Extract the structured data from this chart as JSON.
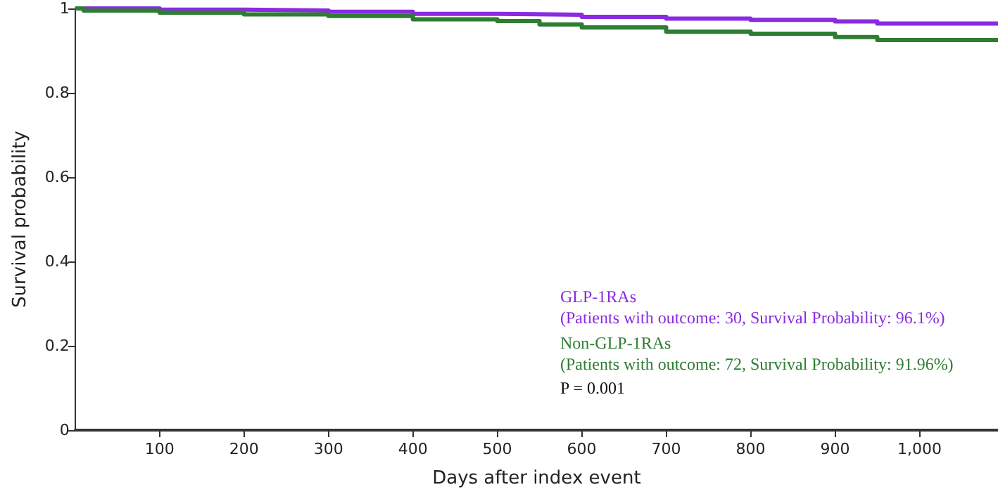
{
  "chart_data": {
    "type": "step",
    "xlabel": "Days after index event",
    "ylabel": "Survival probability",
    "xlim": [
      0,
      1093
    ],
    "ylim": [
      0,
      1
    ],
    "xticks": [
      100,
      200,
      300,
      400,
      500,
      600,
      700,
      800,
      900,
      {
        "value": 1000,
        "label": "1,000"
      }
    ],
    "yticks": [
      0,
      0.2,
      0.4,
      0.6,
      0.8,
      1
    ],
    "legend": "right",
    "grid": false,
    "marker": "none",
    "series": [
      {
        "name": "GLP-1RAs",
        "color": "#8a2be2",
        "x": [
          0,
          100,
          200,
          300,
          400,
          500,
          600,
          700,
          800,
          900,
          950,
          1093
        ],
        "values": [
          1,
          0.997,
          0.995,
          0.992,
          0.987,
          0.985,
          0.98,
          0.976,
          0.973,
          0.969,
          0.964,
          0.961
        ]
      },
      {
        "name": "Non-GLP-1RAs",
        "color": "#2e7d32",
        "x": [
          0,
          10,
          100,
          200,
          300,
          400,
          500,
          550,
          600,
          700,
          800,
          900,
          950,
          1093
        ],
        "values": [
          1,
          0.995,
          0.99,
          0.986,
          0.982,
          0.974,
          0.97,
          0.962,
          0.955,
          0.945,
          0.94,
          0.932,
          0.925,
          0.92
        ]
      }
    ],
    "annotations": [
      "(Patients with outcome: 30, Survival Probability: 96.1%)",
      "(Patients with outcome: 72, Survival Probability: 91.96%)",
      "P = 0.001"
    ]
  }
}
